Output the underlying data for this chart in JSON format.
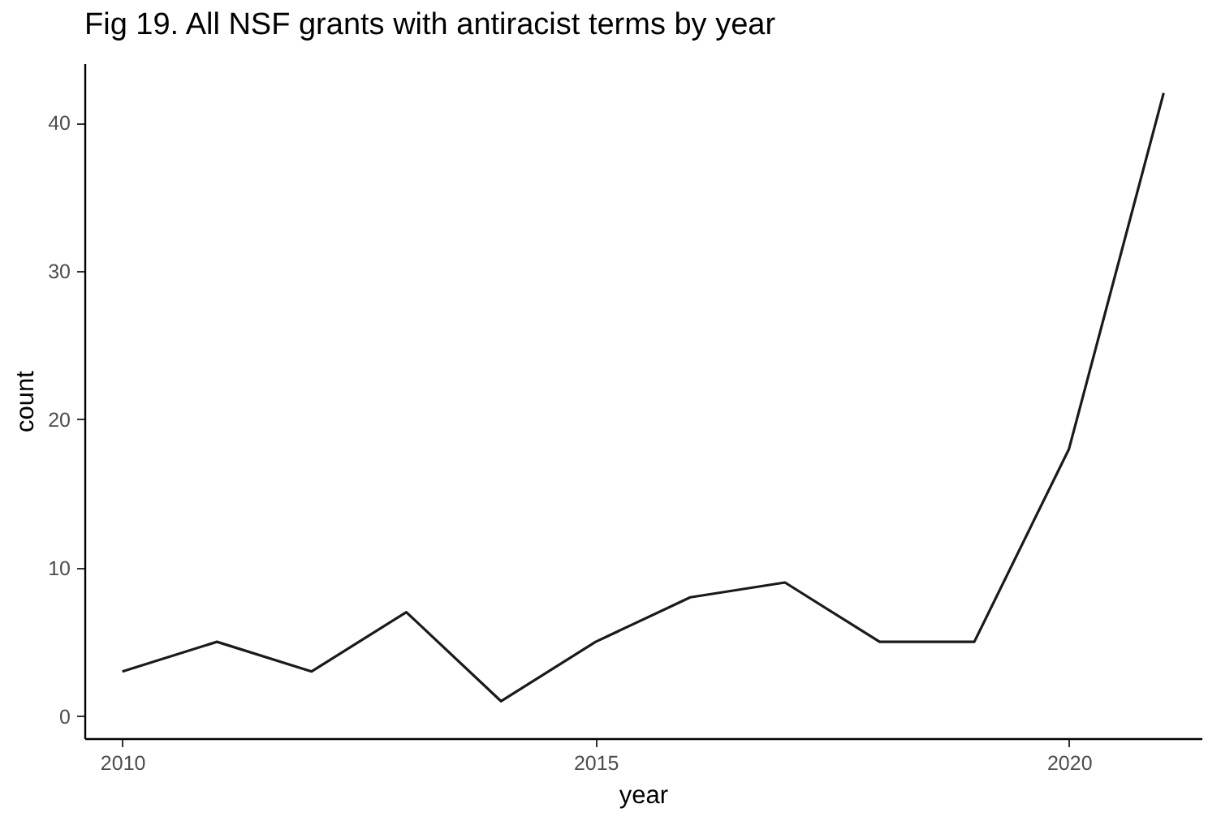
{
  "chart_data": {
    "type": "line",
    "title": "Fig 19. All NSF grants with antiracist terms by year",
    "xlabel": "year",
    "ylabel": "count",
    "x": [
      2010,
      2011,
      2012,
      2013,
      2014,
      2015,
      2016,
      2017,
      2018,
      2019,
      2020,
      2021
    ],
    "series": [
      {
        "color": "#1a1a1a",
        "values": [
          3,
          5,
          3,
          7,
          1,
          5,
          8,
          9,
          5,
          5,
          18,
          42
        ]
      }
    ],
    "xlim": [
      2009.6,
      2021.4
    ],
    "xticks": [
      2010,
      2015,
      2020
    ],
    "ylim": [
      -1.5,
      44
    ],
    "yticks": [
      0,
      10,
      20,
      30,
      40
    ],
    "grid": false,
    "marker": "none",
    "line_style": "solid"
  }
}
